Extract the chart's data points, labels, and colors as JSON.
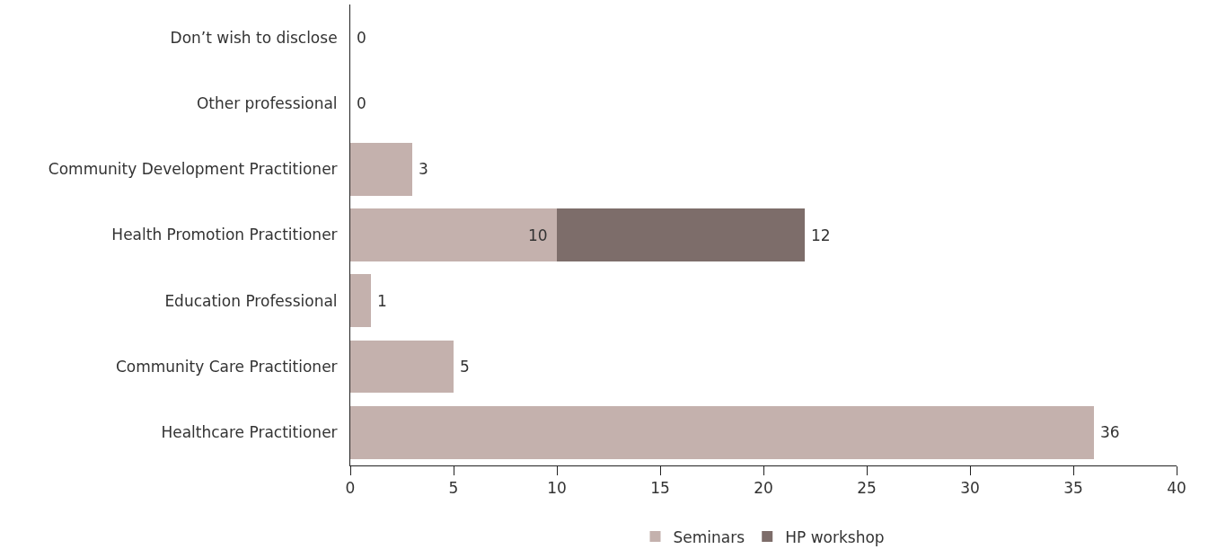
{
  "chart_data": {
    "type": "bar",
    "orientation": "horizontal",
    "stacked": true,
    "categories": [
      "Don’t wish to disclose",
      "Other professional",
      "Community Development Practitioner",
      "Health Promotion Practitioner",
      "Education Professional",
      "Community Care Practitioner",
      "Healthcare Practitioner"
    ],
    "series": [
      {
        "name": "Seminars",
        "color": "#c4b1ad",
        "values": [
          0,
          0,
          3,
          10,
          1,
          5,
          36
        ],
        "value_labels": [
          "0",
          "0",
          "3",
          "10",
          "1",
          "5",
          "36"
        ]
      },
      {
        "name": "HP workshop",
        "color": "#7d6d6a",
        "values": [
          0,
          0,
          0,
          12,
          0,
          0,
          0
        ],
        "value_labels": [
          null,
          null,
          null,
          "12",
          null,
          null,
          null
        ]
      }
    ],
    "xlim": [
      0,
      40
    ],
    "xticks": [
      0,
      5,
      10,
      15,
      20,
      25,
      30,
      35,
      40
    ],
    "legend": "bottom"
  }
}
